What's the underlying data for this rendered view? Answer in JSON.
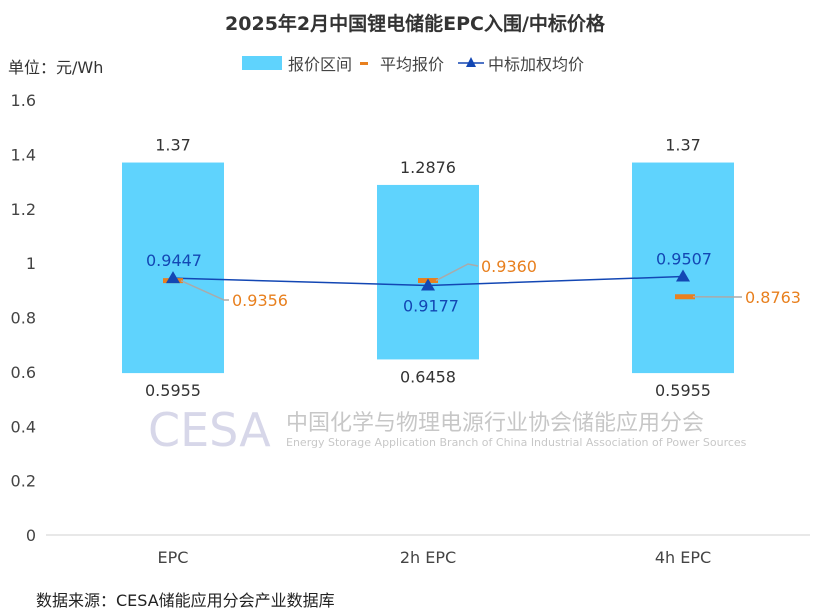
{
  "chart_data": {
    "type": "bar",
    "title": "2025年2月中国锂电储能EPC入围/中标价格",
    "unit_label": "单位：元/Wh",
    "categories": [
      "EPC",
      "2h EPC",
      "4h EPC"
    ],
    "ylim": [
      0,
      1.6
    ],
    "yticks": [
      "0",
      "0.2",
      "0.4",
      "0.6",
      "0.8",
      "1",
      "1.2",
      "1.4",
      "1.6"
    ],
    "grid": false,
    "legend_position": "top",
    "series": [
      {
        "name": "报价区间",
        "kind": "floating-bar",
        "low": [
          0.5955,
          0.6458,
          0.5955
        ],
        "high": [
          1.37,
          1.2876,
          1.37
        ],
        "low_labels": [
          "0.5955",
          "0.6458",
          "0.5955"
        ],
        "high_labels": [
          "1.37",
          "1.2876",
          "1.37"
        ],
        "color": "#5fd3fd"
      },
      {
        "name": "平均报价",
        "kind": "marker",
        "values": [
          0.9356,
          0.936,
          0.8763
        ],
        "labels": [
          "0.9356",
          "0.9360",
          "0.8763"
        ],
        "color": "#e8801f"
      },
      {
        "name": "中标加权均价",
        "kind": "line",
        "values": [
          0.9447,
          0.9177,
          0.9507
        ],
        "labels": [
          "0.9447",
          "0.9177",
          "0.9507"
        ],
        "color": "#1347b4"
      }
    ],
    "source": "数据来源：CESA储能应用分会产业数据库"
  },
  "watermark": {
    "logo": "CESA",
    "name_cn": "中国化学与物理电源行业协会储能应用分会",
    "name_en": "Energy Storage Application Branch of China Industrial Association of Power Sources"
  }
}
